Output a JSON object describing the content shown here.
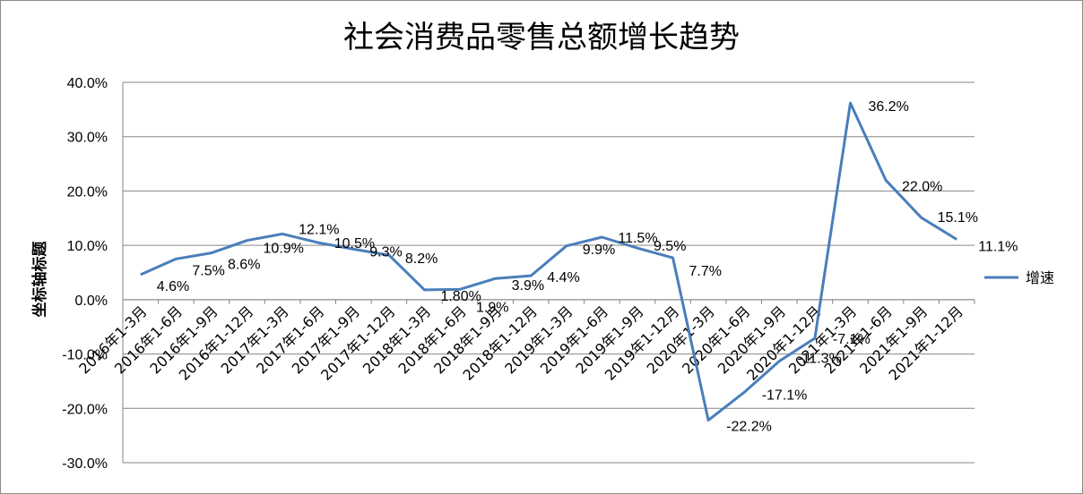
{
  "chart_data": {
    "type": "line",
    "title": "社会消费品零售总额增长趋势",
    "ylabel": "坐标轴标题",
    "xlabel": "",
    "ylim": [
      -0.3,
      0.4
    ],
    "ytick_values": [
      0.4,
      0.3,
      0.2,
      0.1,
      0.0,
      -0.1,
      -0.2,
      -0.3
    ],
    "ytick_labels": [
      "40.0%",
      "30.0%",
      "20.0%",
      "10.0%",
      "0.0%",
      "-10.0%",
      "-20.0%",
      "-30.0%"
    ],
    "grid": true,
    "legend_position": "right",
    "categories": [
      "2016年1-3月",
      "2016年1-6月",
      "2016年1-9月",
      "2016年1-12月",
      "2017年1-3月",
      "2017年1-6月",
      "2017年1-9月",
      "2017年1-12月",
      "2018年1-3月",
      "2018年1-6月",
      "2018年1-9月",
      "2018年1-12月",
      "2019年1-3月",
      "2019年1-6月",
      "2019年1-9月",
      "2019年1-12月",
      "2020年1-3月",
      "2020年1-6月",
      "2020年1-9月",
      "2020年1-12月",
      "2021年1-3月",
      "2021年1-6月",
      "2021年1-9月",
      "2021年1-12月"
    ],
    "series": [
      {
        "name": "增速",
        "color": "#4a7ebb",
        "values": [
          0.046,
          0.075,
          0.086,
          0.109,
          0.121,
          0.105,
          0.093,
          0.082,
          0.018,
          0.019,
          0.039,
          0.044,
          0.099,
          0.115,
          0.095,
          0.077,
          -0.222,
          -0.171,
          -0.113,
          -0.071,
          0.362,
          0.22,
          0.151,
          0.111
        ],
        "labels": [
          "4.6%",
          "7.5%",
          "8.6%",
          "10.9%",
          "12.1%",
          "10.5%",
          "9.3%",
          "8.2%",
          "1.80%",
          "1.9%",
          "3.9%",
          "4.4%",
          "9.9%",
          "11.5%",
          "9.5%",
          "7.7%",
          "-22.2%",
          "-17.1%",
          "-11.3%",
          "-7.1%",
          "36.2%",
          "22.0%",
          "15.1%",
          "11.1%"
        ]
      }
    ]
  }
}
